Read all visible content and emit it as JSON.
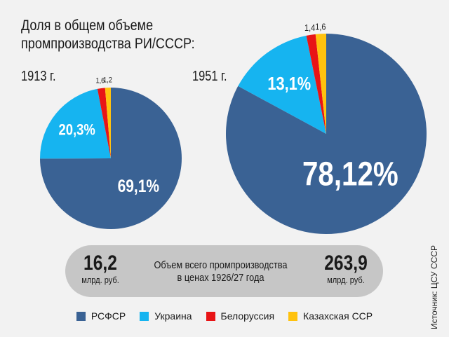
{
  "title": {
    "line1": "Доля в общем объеме",
    "line2": "промпроизводства РИ/СССР:"
  },
  "chart_data": [
    {
      "type": "pie",
      "year_label": "1913 г.",
      "slices": [
        {
          "name": "РСФСР",
          "value": 69.1,
          "label": "69,1%",
          "color": "#3a6294"
        },
        {
          "name": "Украина",
          "value": 20.3,
          "label": "20,3%",
          "color": "#16b4f0"
        },
        {
          "name": "Белоруссия",
          "value": 1.6,
          "label": "1,6",
          "color": "#e81416"
        },
        {
          "name": "Казахская ССР",
          "value": 1.2,
          "label": "1,2",
          "color": "#ffc20e"
        }
      ]
    },
    {
      "type": "pie",
      "year_label": "1951 г.",
      "slices": [
        {
          "name": "РСФСР",
          "value": 78.12,
          "label": "78,12%",
          "color": "#3a6294"
        },
        {
          "name": "Украина",
          "value": 13.1,
          "label": "13,1%",
          "color": "#16b4f0"
        },
        {
          "name": "Белоруссия",
          "value": 1.4,
          "label": "1,4",
          "color": "#e81416"
        },
        {
          "name": "Казахская ССР",
          "value": 1.6,
          "label": "1,6",
          "color": "#ffc20e"
        }
      ]
    }
  ],
  "totals": {
    "left_value": "16,2",
    "left_unit": "млрд. руб.",
    "caption_line1": "Объем всего промпроизводства",
    "caption_line2": "в ценах 1926/27 года",
    "right_value": "263,9",
    "right_unit": "млрд. руб."
  },
  "legend": [
    {
      "label": "РСФСР",
      "color": "#3a6294"
    },
    {
      "label": "Украина",
      "color": "#16b4f0"
    },
    {
      "label": "Белоруссия",
      "color": "#e81416"
    },
    {
      "label": "Казахская ССР",
      "color": "#ffc20e"
    }
  ],
  "source": "Источник: ЦСУ СССР"
}
